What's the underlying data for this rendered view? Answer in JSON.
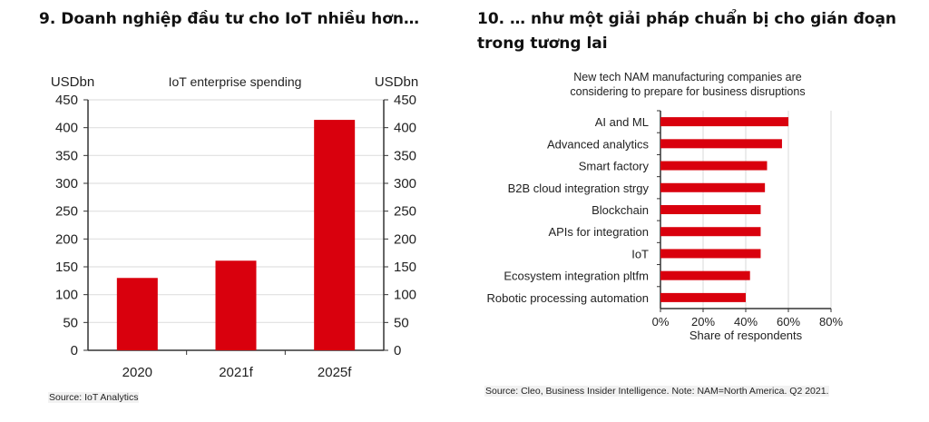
{
  "headings": {
    "left": "9. Doanh nghiệp đầu tư cho IoT nhiều hơn…",
    "right": "10. … như một giải pháp chuẩn bị cho gián đoạn trong tương lai"
  },
  "colors": {
    "bar": "#d9000d",
    "grid": "#e0e0e0",
    "axis": "#333333"
  },
  "chart_data": [
    {
      "type": "bar",
      "title": "IoT enterprise spending",
      "ylabel_left": "USDbn",
      "ylabel_right": "USDbn",
      "categories": [
        "2020",
        "2021f",
        "2025f"
      ],
      "values": [
        130,
        161,
        414
      ],
      "ylim": [
        0,
        450
      ],
      "yticks": [
        0,
        50,
        100,
        150,
        200,
        250,
        300,
        350,
        400,
        450
      ],
      "grid": true,
      "source": "Source: IoT Analytics"
    },
    {
      "type": "bar",
      "orientation": "horizontal",
      "title": "New tech NAM manufacturing companies are considering to prepare for business disruptions",
      "title_lines": [
        "New tech NAM manufacturing  companies  are",
        "considering  to prepare for business disruptions"
      ],
      "xlabel": "Share of respondents",
      "categories": [
        "AI and ML",
        "Advanced analytics",
        "Smart factory",
        "B2B cloud integration strgy",
        "Blockchain",
        "APIs for integration",
        "IoT",
        "Ecosystem integration pltfm",
        "Robotic processing automation"
      ],
      "values": [
        60,
        57,
        50,
        49,
        47,
        47,
        47,
        42,
        40
      ],
      "unit": "%",
      "xlim": [
        0,
        80
      ],
      "xticks": [
        0,
        20,
        40,
        60,
        80
      ],
      "xtick_labels": [
        "0%",
        "20%",
        "40%",
        "60%",
        "80%"
      ],
      "grid": true,
      "source": "Source: Cleo, Business Insider Intelligence. Note: NAM=North America. Q2 2021."
    }
  ]
}
